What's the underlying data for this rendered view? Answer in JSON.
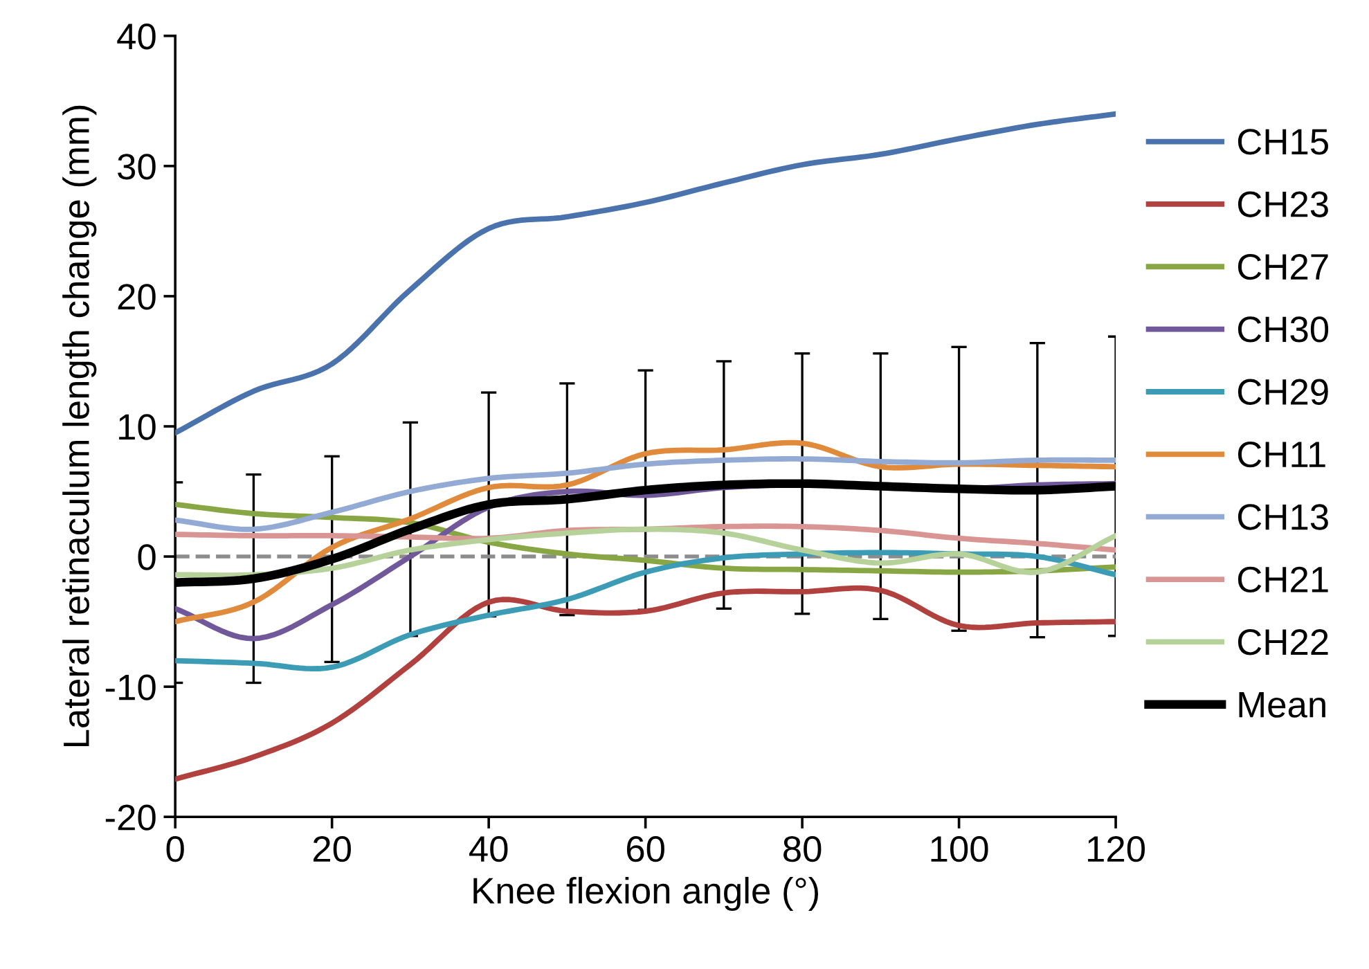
{
  "chart_data": {
    "type": "line",
    "xlabel": "Knee flexion angle (°)",
    "ylabel": "Lateral retinaculum length change (mm)",
    "x": [
      0,
      10,
      20,
      30,
      40,
      50,
      60,
      70,
      80,
      90,
      100,
      110,
      120
    ],
    "xlim": [
      0,
      120
    ],
    "xticks": [
      0,
      20,
      40,
      60,
      80,
      100,
      120
    ],
    "ylim": [
      -20,
      40
    ],
    "yticks": [
      -20,
      -10,
      0,
      10,
      20,
      30,
      40
    ],
    "grid": false,
    "legend": "right",
    "marker": "none",
    "line_style": "solid",
    "ref_lines": [
      {
        "axis": "y",
        "value": 0,
        "color": "#8c8c8c",
        "line_style": "dashed"
      }
    ],
    "series": [
      {
        "name": "CH15",
        "color": "#4a72ad",
        "values": [
          9.5,
          12.7,
          14.8,
          20.5,
          25.2,
          26.1,
          27.2,
          28.7,
          30.1,
          30.9,
          32.1,
          33.2,
          34.0
        ]
      },
      {
        "name": "CH23",
        "color": "#b0413e",
        "values": [
          -17.1,
          -15.4,
          -12.8,
          -8.3,
          -3.5,
          -4.2,
          -4.2,
          -2.8,
          -2.7,
          -2.6,
          -5.3,
          -5.1,
          -5.0
        ]
      },
      {
        "name": "CH27",
        "color": "#88a744",
        "values": [
          4.0,
          3.3,
          3.0,
          2.6,
          1.1,
          0.2,
          -0.3,
          -0.9,
          -1.0,
          -1.1,
          -1.2,
          -1.1,
          -0.8
        ]
      },
      {
        "name": "CH30",
        "color": "#71589a",
        "values": [
          -4.0,
          -6.3,
          -3.7,
          0.0,
          3.8,
          5.0,
          4.7,
          5.3,
          5.5,
          5.4,
          5.2,
          5.5,
          5.6
        ]
      },
      {
        "name": "CH29",
        "color": "#3c9bb5",
        "values": [
          -8.0,
          -8.2,
          -8.5,
          -6.0,
          -4.5,
          -3.3,
          -1.2,
          -0.1,
          0.2,
          0.3,
          0.2,
          0.0,
          -1.4
        ]
      },
      {
        "name": "CH11",
        "color": "#e08a3c",
        "values": [
          -5.0,
          -3.5,
          0.7,
          2.9,
          5.3,
          5.5,
          7.9,
          8.2,
          8.7,
          6.9,
          7.1,
          7.0,
          6.9
        ]
      },
      {
        "name": "CH13",
        "color": "#93aad4",
        "values": [
          2.8,
          2.1,
          3.4,
          5.0,
          6.0,
          6.4,
          7.1,
          7.4,
          7.5,
          7.3,
          7.2,
          7.4,
          7.4
        ]
      },
      {
        "name": "CH21",
        "color": "#d99594",
        "values": [
          1.7,
          1.6,
          1.6,
          1.5,
          1.4,
          2.0,
          2.1,
          2.3,
          2.3,
          2.0,
          1.4,
          1.0,
          0.5
        ]
      },
      {
        "name": "CH22",
        "color": "#b7d19b",
        "values": [
          -1.4,
          -1.4,
          -0.9,
          0.5,
          1.3,
          1.8,
          2.1,
          1.8,
          0.5,
          -0.5,
          0.2,
          -1.2,
          1.6
        ]
      },
      {
        "name": "Mean",
        "color": "#000000",
        "values": [
          -2.0,
          -1.7,
          -0.2,
          2.1,
          4.0,
          4.4,
          5.1,
          5.5,
          5.6,
          5.4,
          5.2,
          5.1,
          5.4
        ],
        "errors": [
          7.7,
          8.0,
          7.9,
          8.2,
          8.6,
          8.9,
          9.2,
          9.5,
          10.0,
          10.2,
          10.9,
          11.3,
          11.5
        ]
      }
    ]
  }
}
